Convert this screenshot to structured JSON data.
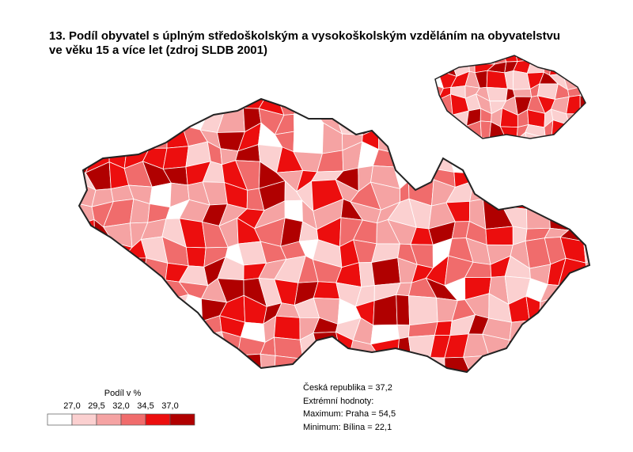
{
  "title_lines": [
    "13. Podíl obyvatel s úplným středoškolským a vysokoškolským vzděláním na obyvatelstvu",
    "ve věku 15 a více let (zdroj SLDB 2001)"
  ],
  "legend": {
    "title": "Podíl v %",
    "labels": [
      "27,0",
      "29,5",
      "32,0",
      "34,5",
      "37,0"
    ],
    "colors": [
      "#ffffff",
      "#fbd0d0",
      "#f5a3a3",
      "#f06c6c",
      "#ec0e0e",
      "#b00000"
    ]
  },
  "notes": [
    "Česká republika = 37,2",
    "Extrémní hodnoty:",
    "Maximum: Praha = 54,5",
    "Minimum:  Bílina = 22,1"
  ]
}
